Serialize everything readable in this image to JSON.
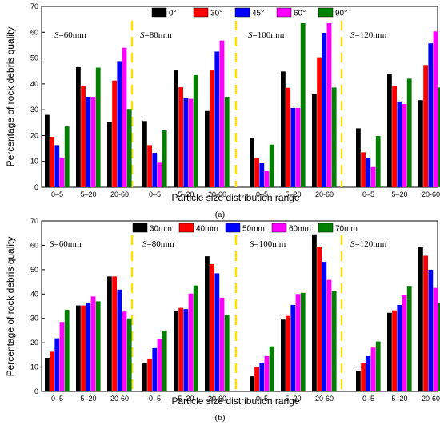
{
  "charts": [
    {
      "type": "bar",
      "subfigure_label": "(a)",
      "xlabel": "Particle size distribution range",
      "ylabel": "Percentage of rock debris quality",
      "ylim": [
        0,
        70
      ],
      "yticks": [
        0,
        10,
        20,
        30,
        40,
        50,
        60,
        70
      ],
      "categories": [
        "0–5",
        "5–20",
        "20-60"
      ],
      "series_colors": [
        "#000000",
        "#ff0000",
        "#0000ff",
        "#ff00ff",
        "#008000"
      ],
      "legend": [
        "0°",
        "30°",
        "45°",
        "60°",
        "90°"
      ],
      "groups": [
        {
          "label": "S=60mm",
          "values": [
            [
              28,
              19.5,
              16.3,
              11.5,
              23.5
            ],
            [
              46.5,
              39,
              35,
              35,
              46.3
            ],
            [
              25.3,
              41.3,
              48.8,
              54,
              30.3
            ]
          ]
        },
        {
          "label": "S=80mm",
          "values": [
            [
              25.6,
              16.3,
              13.3,
              9.5,
              22
            ],
            [
              45.2,
              38.7,
              34.5,
              34.2,
              43.4
            ],
            [
              29.5,
              45.2,
              52.5,
              56.8,
              35
            ]
          ]
        },
        {
          "label": "S=100mm",
          "values": [
            [
              19.2,
              11.3,
              9.3,
              6.2,
              16.5
            ],
            [
              44.8,
              38.5,
              30.7,
              30.7,
              63.5
            ],
            [
              36,
              50.3,
              59.8,
              63.5,
              38.6
            ]
          ]
        },
        {
          "label": "S=120mm",
          "values": [
            [
              22.8,
              13.5,
              11.3,
              7.8,
              19.8
            ],
            [
              43.8,
              39.2,
              33.2,
              32.2,
              42
            ],
            [
              33.7,
              47.3,
              55.7,
              60.3,
              38.6
            ]
          ]
        }
      ]
    },
    {
      "type": "bar",
      "subfigure_label": "(b)",
      "xlabel": "Particle size distribution range",
      "ylabel": "Percentage of rock debris quality",
      "ylim": [
        0,
        70
      ],
      "yticks": [
        0,
        10,
        20,
        30,
        40,
        50,
        60,
        70
      ],
      "categories": [
        "0–5",
        "5–20",
        "20-60"
      ],
      "series_colors": [
        "#000000",
        "#ff0000",
        "#0000ff",
        "#ff00ff",
        "#008000"
      ],
      "legend": [
        "30mm",
        "40mm",
        "50mm",
        "60mm",
        "70mm"
      ],
      "groups": [
        {
          "label": "S=60mm",
          "values": [
            [
              13.8,
              16.3,
              21.8,
              28.5,
              33.5
            ],
            [
              35.3,
              35.3,
              36.5,
              39,
              37
            ],
            [
              47.2,
              47.2,
              41.8,
              32.8,
              30
            ]
          ]
        },
        {
          "label": "S=80mm",
          "values": [
            [
              11.5,
              13.5,
              17.8,
              21.5,
              25
            ],
            [
              33,
              34.3,
              33.8,
              40.2,
              43.5
            ],
            [
              55.5,
              52.3,
              48.5,
              38.5,
              31.5
            ]
          ]
        },
        {
          "label": "S=100mm",
          "values": [
            [
              6.2,
              10,
              11.5,
              14.5,
              18.5
            ],
            [
              29.5,
              31,
              35.5,
              40,
              40.5
            ],
            [
              64.5,
              59.5,
              53.2,
              45.8,
              41.3
            ]
          ]
        },
        {
          "label": "S=120mm",
          "values": [
            [
              8.5,
              11.5,
              14.5,
              18,
              20.5
            ],
            [
              32.3,
              33.3,
              35.5,
              39.5,
              43.3
            ],
            [
              59.2,
              55.7,
              50,
              42.5,
              36.5
            ]
          ]
        }
      ]
    }
  ]
}
